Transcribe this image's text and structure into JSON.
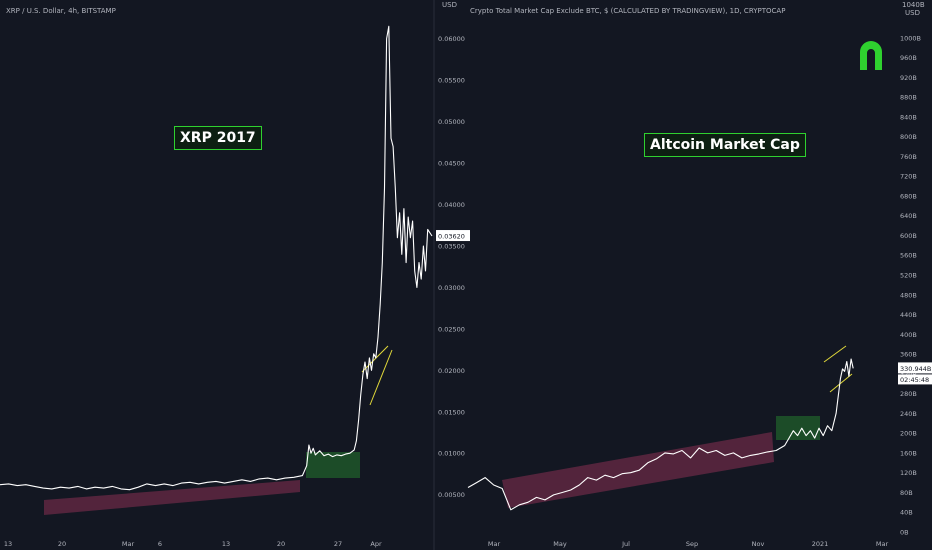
{
  "left_panel": {
    "header": "XRP / U.S. Dollar, 4h, BITSTAMP",
    "axis_unit": "USD",
    "annotation": "XRP 2017",
    "last_price": "0.03620"
  },
  "right_panel": {
    "header": "Crypto Total Market Cap Exclude BTC, $ (CALCULATED BY TRADINGVIEW), 1D, CRYPTOCAP",
    "axis_unit_top": "1040B",
    "axis_unit": "USD",
    "annotation": "Altcoin Market Cap",
    "last_price": "330.944B",
    "countdown": "02:45:48"
  },
  "logo_icon": "horseshoe-logo-icon",
  "colors": {
    "background": "#131722",
    "line": "#ffffff",
    "channel_fill": "#6a2a45",
    "consolidation_fill": "#1f5a2a",
    "annotation_border": "#2fd12f",
    "trendline": "#e0d83a",
    "logo": "#2fd12f"
  },
  "chart_data": [
    {
      "type": "line",
      "title": "XRP / U.S. Dollar, 4h, BITSTAMP",
      "ylabel": "USD",
      "ylim": [
        0.0005,
        0.0625
      ],
      "y_ticks": [
        "0.00500",
        "0.01000",
        "0.01500",
        "0.02000",
        "0.02500",
        "0.03000",
        "0.03500",
        "0.04000",
        "0.04500",
        "0.05000",
        "0.05500",
        "0.06000"
      ],
      "x_ticks": [
        "13",
        "20",
        "Mar",
        "6",
        "13",
        "20",
        "27",
        "Apr"
      ],
      "series": [
        {
          "values": [
            [
              0,
              0.0062
            ],
            [
              0.02,
              0.0063
            ],
            [
              0.04,
              0.0061
            ],
            [
              0.06,
              0.0062
            ],
            [
              0.08,
              0.006
            ],
            [
              0.1,
              0.0058
            ],
            [
              0.12,
              0.0057
            ],
            [
              0.14,
              0.0059
            ],
            [
              0.16,
              0.0058
            ],
            [
              0.18,
              0.006
            ],
            [
              0.2,
              0.0057
            ],
            [
              0.22,
              0.0059
            ],
            [
              0.24,
              0.0058
            ],
            [
              0.26,
              0.006
            ],
            [
              0.28,
              0.0057
            ],
            [
              0.3,
              0.0056
            ],
            [
              0.32,
              0.0059
            ],
            [
              0.34,
              0.0063
            ],
            [
              0.36,
              0.0061
            ],
            [
              0.38,
              0.0063
            ],
            [
              0.4,
              0.0061
            ],
            [
              0.42,
              0.0064
            ],
            [
              0.44,
              0.0065
            ],
            [
              0.46,
              0.0063
            ],
            [
              0.48,
              0.0065
            ],
            [
              0.5,
              0.0066
            ],
            [
              0.52,
              0.0064
            ],
            [
              0.54,
              0.0066
            ],
            [
              0.56,
              0.0068
            ],
            [
              0.58,
              0.0066
            ],
            [
              0.6,
              0.0069
            ],
            [
              0.62,
              0.007
            ],
            [
              0.64,
              0.0068
            ],
            [
              0.66,
              0.007
            ],
            [
              0.68,
              0.0071
            ],
            [
              0.7,
              0.0073
            ],
            [
              0.71,
              0.0085
            ],
            [
              0.715,
              0.011
            ],
            [
              0.72,
              0.01
            ],
            [
              0.725,
              0.0106
            ],
            [
              0.73,
              0.0098
            ],
            [
              0.74,
              0.0103
            ],
            [
              0.75,
              0.0097
            ],
            [
              0.76,
              0.0099
            ],
            [
              0.77,
              0.0096
            ],
            [
              0.78,
              0.0098
            ],
            [
              0.79,
              0.0097
            ],
            [
              0.8,
              0.0099
            ],
            [
              0.81,
              0.01
            ],
            [
              0.82,
              0.0104
            ],
            [
              0.825,
              0.0115
            ],
            [
              0.83,
              0.014
            ],
            [
              0.835,
              0.017
            ],
            [
              0.84,
              0.0195
            ],
            [
              0.845,
              0.021
            ],
            [
              0.85,
              0.019
            ],
            [
              0.855,
              0.0215
            ],
            [
              0.86,
              0.02
            ],
            [
              0.865,
              0.022
            ],
            [
              0.87,
              0.0215
            ],
            [
              0.875,
              0.024
            ],
            [
              0.88,
              0.028
            ],
            [
              0.885,
              0.033
            ],
            [
              0.89,
              0.042
            ],
            [
              0.895,
              0.06
            ],
            [
              0.9,
              0.0615
            ],
            [
              0.905,
              0.048
            ],
            [
              0.91,
              0.047
            ],
            [
              0.915,
              0.042
            ],
            [
              0.92,
              0.036
            ],
            [
              0.925,
              0.039
            ],
            [
              0.93,
              0.034
            ],
            [
              0.935,
              0.0395
            ],
            [
              0.94,
              0.033
            ],
            [
              0.945,
              0.0385
            ],
            [
              0.95,
              0.036
            ],
            [
              0.955,
              0.038
            ],
            [
              0.96,
              0.032
            ],
            [
              0.965,
              0.03
            ],
            [
              0.97,
              0.033
            ],
            [
              0.975,
              0.031
            ],
            [
              0.98,
              0.035
            ],
            [
              0.985,
              0.032
            ],
            [
              0.99,
              0.037
            ],
            [
              1.0,
              0.0362
            ]
          ]
        }
      ]
    },
    {
      "type": "line",
      "title": "Crypto Total Market Cap Exclude BTC, $ (CALCULATED BY TRADINGVIEW), 1D, CRYPTOCAP",
      "ylabel": "USD",
      "ylim": [
        0,
        1040
      ],
      "y_ticks": [
        "0B",
        "40B",
        "80B",
        "120B",
        "160B",
        "200B",
        "240B",
        "280B",
        "320B",
        "360B",
        "400B",
        "440B",
        "480B",
        "520B",
        "560B",
        "600B",
        "640B",
        "680B",
        "720B",
        "760B",
        "800B",
        "840B",
        "880B",
        "920B",
        "960B",
        "1000B"
      ],
      "x_ticks": [
        "Mar",
        "May",
        "Jul",
        "Sep",
        "Nov",
        "2021",
        "Mar"
      ],
      "series": [
        {
          "values": [
            [
              0,
              90
            ],
            [
              0.02,
              100
            ],
            [
              0.04,
              110
            ],
            [
              0.06,
              95
            ],
            [
              0.08,
              88
            ],
            [
              0.1,
              45
            ],
            [
              0.12,
              55
            ],
            [
              0.14,
              60
            ],
            [
              0.16,
              70
            ],
            [
              0.18,
              65
            ],
            [
              0.2,
              75
            ],
            [
              0.22,
              80
            ],
            [
              0.24,
              85
            ],
            [
              0.26,
              95
            ],
            [
              0.28,
              110
            ],
            [
              0.3,
              105
            ],
            [
              0.32,
              115
            ],
            [
              0.34,
              110
            ],
            [
              0.36,
              118
            ],
            [
              0.38,
              120
            ],
            [
              0.4,
              125
            ],
            [
              0.42,
              140
            ],
            [
              0.44,
              148
            ],
            [
              0.46,
              160
            ],
            [
              0.48,
              158
            ],
            [
              0.5,
              165
            ],
            [
              0.52,
              150
            ],
            [
              0.54,
              170
            ],
            [
              0.56,
              160
            ],
            [
              0.58,
              165
            ],
            [
              0.6,
              155
            ],
            [
              0.62,
              160
            ],
            [
              0.64,
              150
            ],
            [
              0.66,
              155
            ],
            [
              0.68,
              158
            ],
            [
              0.7,
              162
            ],
            [
              0.72,
              165
            ],
            [
              0.74,
              175
            ],
            [
              0.75,
              190
            ],
            [
              0.76,
              205
            ],
            [
              0.77,
              195
            ],
            [
              0.78,
              210
            ],
            [
              0.79,
              195
            ],
            [
              0.8,
              205
            ],
            [
              0.81,
              190
            ],
            [
              0.82,
              210
            ],
            [
              0.83,
              195
            ],
            [
              0.84,
              215
            ],
            [
              0.85,
              205
            ],
            [
              0.86,
              240
            ],
            [
              0.87,
              310
            ],
            [
              0.875,
              330
            ],
            [
              0.88,
              325
            ],
            [
              0.885,
              345
            ],
            [
              0.89,
              315
            ],
            [
              0.895,
              350
            ],
            [
              0.9,
              331
            ]
          ]
        }
      ]
    }
  ]
}
